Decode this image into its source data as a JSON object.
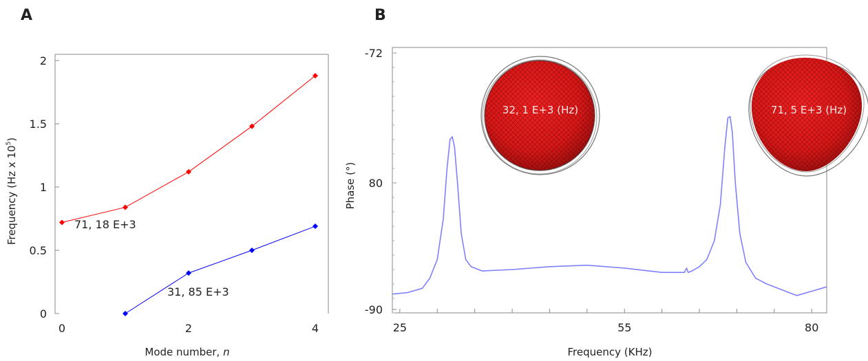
{
  "panels": {
    "a_label": "A",
    "b_label": "B"
  },
  "chart_data": [
    {
      "type": "line",
      "panel": "A",
      "xlabel": "Mode number, ",
      "xlabel_var": "n",
      "ylabel": "Frequency (Hz x 10",
      "ylabel_exp": "5",
      "ylabel_close": ")",
      "xlim": [
        0,
        4
      ],
      "ylim": [
        0,
        2
      ],
      "xticks": [
        0,
        2,
        4
      ],
      "yticks": [
        0,
        0.5,
        1,
        1.5,
        2
      ],
      "ytick_labels": [
        "0",
        "0.5",
        "1",
        "1.5",
        "2"
      ],
      "grid": false,
      "series": [
        {
          "color": "#ff0000",
          "x": [
            0,
            1,
            2,
            3,
            4
          ],
          "y": [
            0.72,
            0.84,
            1.12,
            1.48,
            1.88
          ]
        },
        {
          "color": "#0000ff",
          "x": [
            1,
            2,
            3,
            4
          ],
          "y": [
            0.0,
            0.32,
            0.5,
            0.69
          ]
        }
      ],
      "annotations": [
        "71, 18 E+3",
        "31, 85 E+3"
      ]
    },
    {
      "type": "line",
      "panel": "B",
      "xlabel": "Frequency (KHz)",
      "ylabel": "Phase (°)",
      "xlim": [
        24,
        82
      ],
      "ylim": [
        -90,
        -72
      ],
      "xticks": [
        25,
        55,
        80
      ],
      "yticks": [
        -72,
        80,
        -90
      ],
      "ytick_labels": [
        "-72",
        "80",
        "-90"
      ],
      "grid": false,
      "series": [
        {
          "color": "#8080ff",
          "x": [
            24,
            26,
            28,
            29,
            30,
            30.8,
            31.3,
            31.7,
            32.0,
            32.3,
            32.7,
            33.2,
            33.8,
            34.5,
            36,
            40,
            45,
            50,
            55,
            60,
            63,
            63.3,
            63.5,
            64,
            65,
            66,
            67,
            67.8,
            68.4,
            68.8,
            69.1,
            69.4,
            69.8,
            70.4,
            71.2,
            72.5,
            74,
            76,
            78,
            80,
            82
          ],
          "y": [
            -88.7,
            -88.6,
            -88.3,
            -87.6,
            -86.3,
            -83.5,
            -80.0,
            -78.0,
            -77.8,
            -78.5,
            -81.0,
            -84.5,
            -86.3,
            -86.8,
            -87.1,
            -87.0,
            -86.8,
            -86.7,
            -86.9,
            -87.2,
            -87.2,
            -86.9,
            -87.2,
            -87.1,
            -86.8,
            -86.3,
            -85.0,
            -82.5,
            -78.5,
            -76.5,
            -76.4,
            -77.5,
            -81.0,
            -84.5,
            -86.5,
            -87.6,
            -88.0,
            -88.4,
            -88.8,
            -88.5,
            -88.2
          ]
        }
      ],
      "annotations": [
        "32, 1 E+3 (Hz)",
        "71, 5 E+3 (Hz)"
      ]
    }
  ]
}
